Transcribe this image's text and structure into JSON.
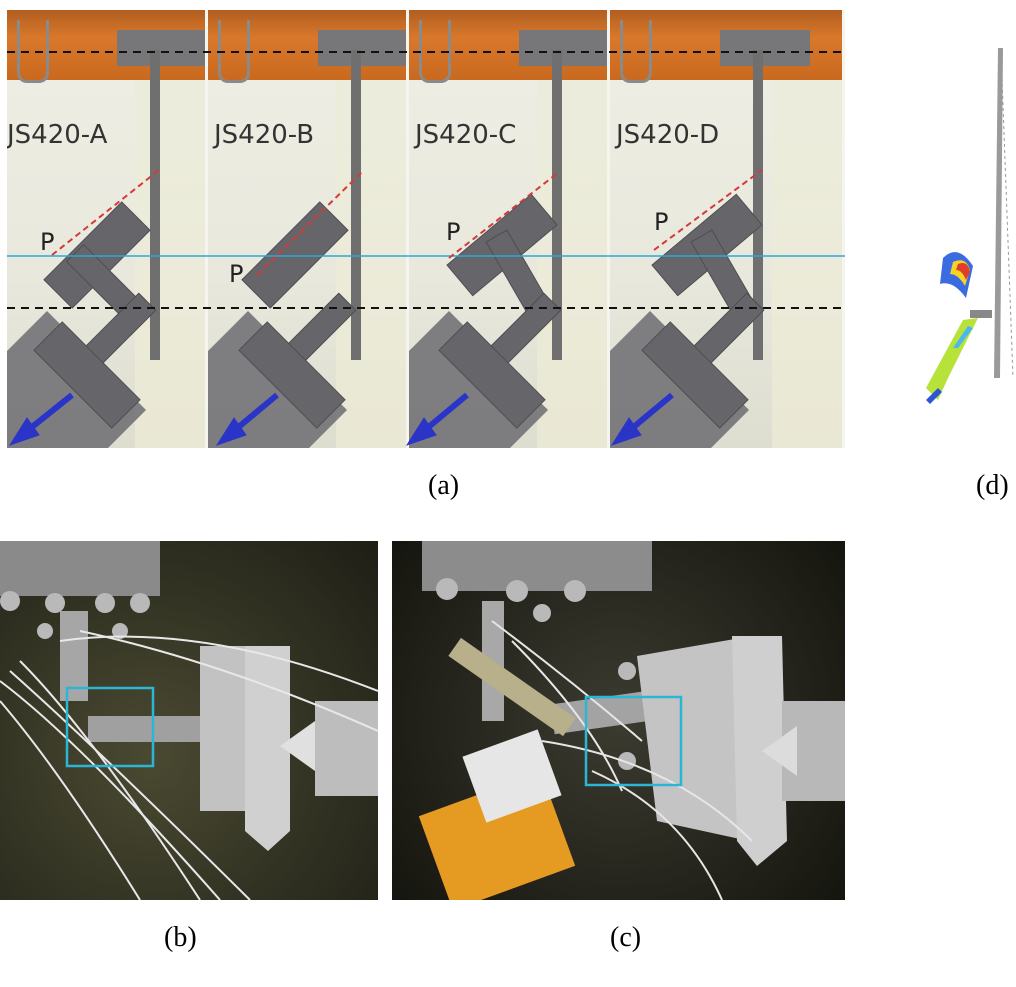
{
  "panel_a": {
    "caption": "(a)",
    "specimens": [
      {
        "label": "JS420-A",
        "p": "P"
      },
      {
        "label": "JS420-B",
        "p": "P"
      },
      {
        "label": "JS420-C",
        "p": "P"
      },
      {
        "label": "JS420-D",
        "p": "P"
      }
    ]
  },
  "panel_b": {
    "caption": "(b)"
  },
  "panel_c": {
    "caption": "(c)"
  },
  "panel_d": {
    "caption": "(d)"
  },
  "colors": {
    "dashed_line": "#111111",
    "cyan_line": "#2aa8d8",
    "red_dashed": "#d43a3a",
    "arrow_blue": "#2a35c8",
    "highlight_box": "#2cb6d6"
  }
}
